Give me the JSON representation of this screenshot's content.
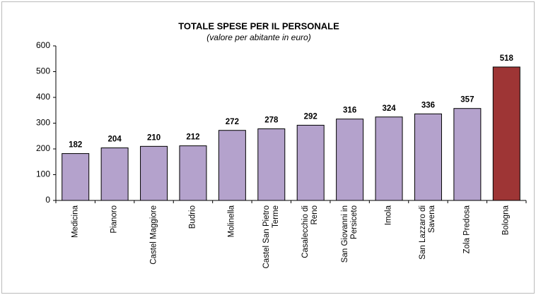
{
  "chart_data": {
    "type": "bar",
    "title": "TOTALE SPESE PER IL PERSONALE",
    "subtitle": "(valore per abitante in euro)",
    "categories": [
      "Medicina",
      "Pianoro",
      "Castel Maggiore",
      "Budrio",
      "Molinella",
      "Castel San Pietro Terme",
      "Casalecchio di Reno",
      "San Giovanni in Persiceto",
      "Imola",
      "San Lazzaro di Savena",
      "Zola Predosa",
      "Bologna"
    ],
    "values": [
      182,
      204,
      210,
      212,
      272,
      278,
      292,
      316,
      324,
      336,
      357,
      518
    ],
    "colors": [
      "#b4a2cc",
      "#b4a2cc",
      "#b4a2cc",
      "#b4a2cc",
      "#b4a2cc",
      "#b4a2cc",
      "#b4a2cc",
      "#b4a2cc",
      "#b4a2cc",
      "#b4a2cc",
      "#b4a2cc",
      "#9e3535"
    ],
    "ylim": [
      0,
      600
    ],
    "yticks": [
      0,
      100,
      200,
      300,
      400,
      500,
      600
    ],
    "grid": false
  }
}
